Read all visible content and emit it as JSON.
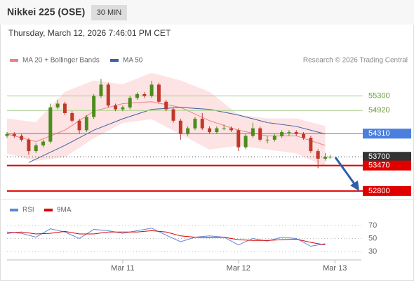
{
  "chart_data": [
    {
      "type": "candlestick",
      "title": "Nikkei 225 (OSE)",
      "timeframe": "30 MIN",
      "subtitle": "Thursday, March 12, 2026 7:46:01 PM CET",
      "source": "Research © 2026 Trading Central",
      "x": [
        0,
        3,
        6,
        9,
        12,
        15,
        18,
        21,
        24,
        27,
        30,
        33,
        36,
        39,
        42,
        45,
        48,
        51,
        54,
        57,
        60,
        63,
        66,
        69,
        72,
        75,
        78,
        81,
        84,
        87,
        90,
        93,
        96,
        99,
        102,
        105,
        108,
        111,
        114,
        117,
        120,
        123,
        126,
        129,
        132,
        134
      ],
      "open": [
        54250,
        54300,
        54250,
        54150,
        53850,
        54000,
        54100,
        55000,
        55100,
        54850,
        54650,
        54400,
        54750,
        55300,
        55600,
        55050,
        54950,
        55000,
        55250,
        55350,
        55300,
        55600,
        55150,
        54950,
        54650,
        54300,
        54450,
        54700,
        54450,
        54350,
        54450,
        54450,
        54400,
        53950,
        54250,
        54450,
        54150,
        54150,
        54250,
        54350,
        54350,
        54300,
        54200,
        53850,
        53650,
        53700
      ],
      "high": [
        54350,
        54350,
        54300,
        54200,
        54050,
        54150,
        55100,
        55200,
        55150,
        54900,
        54700,
        54800,
        55350,
        55750,
        55650,
        55100,
        55050,
        55300,
        55400,
        55400,
        55700,
        55650,
        55200,
        55000,
        54700,
        54500,
        54750,
        54850,
        54500,
        54500,
        54550,
        54500,
        54450,
        54300,
        54600,
        54500,
        54250,
        54300,
        54400,
        54400,
        54400,
        54350,
        54250,
        53900,
        53800,
        53750
      ],
      "low": [
        54200,
        54200,
        54100,
        53750,
        53800,
        53950,
        54050,
        54950,
        54800,
        54600,
        54300,
        54350,
        54700,
        55250,
        55000,
        54900,
        54900,
        54950,
        55200,
        55250,
        55250,
        55100,
        54900,
        54600,
        54150,
        54250,
        54400,
        54400,
        54300,
        54300,
        54400,
        54350,
        53850,
        53900,
        54200,
        54100,
        54050,
        54100,
        54200,
        54250,
        54250,
        54150,
        53800,
        53400,
        53600,
        53650
      ],
      "close": [
        54300,
        54250,
        54150,
        53850,
        54000,
        54100,
        55000,
        55100,
        54850,
        54650,
        54400,
        54750,
        55300,
        55600,
        55050,
        54950,
        55000,
        55250,
        55350,
        55300,
        55600,
        55150,
        54950,
        54650,
        54300,
        54450,
        54700,
        54450,
        54350,
        54450,
        54450,
        54400,
        53950,
        54250,
        54450,
        54150,
        54150,
        54250,
        54350,
        54350,
        54300,
        54200,
        53850,
        53650,
        53700,
        53700
      ],
      "up_color": "#4c8c1c",
      "down_color": "#c0392b",
      "xlim": [
        0,
        147
      ],
      "ylim": [
        52650,
        56440
      ],
      "series": [
        {
          "name": "MA 20 + Bollinger Bands",
          "color": "#f08080",
          "band_color": "#fde3e3",
          "x": [
            0,
            12,
            24,
            36,
            48,
            60,
            72,
            84,
            96,
            108,
            120,
            132
          ],
          "values": [
            54300,
            54100,
            54400,
            54900,
            55100,
            55150,
            55000,
            54650,
            54400,
            54250,
            54250,
            54000
          ],
          "upper": [
            54700,
            54600,
            55400,
            55700,
            55600,
            55900,
            55700,
            55400,
            54800,
            54700,
            54700,
            54500
          ],
          "lower": [
            53800,
            53600,
            53700,
            54200,
            54600,
            54700,
            54300,
            53900,
            54000,
            53900,
            53800,
            53450
          ]
        },
        {
          "name": "MA 50",
          "color": "#3d5fa6",
          "x": [
            9,
            24,
            36,
            48,
            60,
            72,
            84,
            96,
            108,
            120,
            132
          ],
          "values": [
            53550,
            54000,
            54400,
            54700,
            54950,
            55000,
            54950,
            54800,
            54600,
            54500,
            54300
          ]
        }
      ],
      "levels": [
        {
          "value": 55300,
          "color": "#a9d18e",
          "style": "text"
        },
        {
          "value": 54920,
          "color": "#a9d18e",
          "style": "text"
        },
        {
          "value": 54310,
          "color": "#4a7fe0",
          "style": "box"
        },
        {
          "value": 53700,
          "color": "#333333",
          "style": "dotted"
        },
        {
          "value": 53470,
          "color": "#e00000",
          "style": "box"
        },
        {
          "value": 52800,
          "color": "#e00000",
          "style": "box"
        }
      ]
    },
    {
      "type": "line",
      "xlim": [
        0,
        147
      ],
      "ylim": [
        19,
        82
      ],
      "yticks": [
        30,
        50,
        70
      ],
      "xticks": [
        {
          "value": 48,
          "label": "Mar 11"
        },
        {
          "value": 96,
          "label": "Mar 12"
        },
        {
          "value": 136,
          "label": "Mar 13"
        }
      ],
      "series": [
        {
          "name": "RSI",
          "color": "#5b87d6",
          "x": [
            0,
            6,
            12,
            18,
            24,
            30,
            36,
            42,
            48,
            54,
            60,
            66,
            72,
            78,
            84,
            90,
            96,
            102,
            108,
            114,
            120,
            126,
            132
          ],
          "values": [
            60,
            58,
            52,
            65,
            60,
            50,
            64,
            62,
            58,
            62,
            66,
            55,
            45,
            52,
            54,
            52,
            40,
            50,
            46,
            52,
            50,
            38,
            42
          ]
        },
        {
          "name": "9MA",
          "color": "#e00000",
          "x": [
            0,
            6,
            12,
            18,
            24,
            30,
            36,
            42,
            48,
            54,
            60,
            66,
            72,
            78,
            84,
            90,
            96,
            102,
            108,
            114,
            120,
            126,
            132
          ],
          "values": [
            58,
            60,
            57,
            58,
            61,
            57,
            57,
            60,
            60,
            60,
            62,
            60,
            54,
            52,
            51,
            52,
            48,
            47,
            47,
            48,
            49,
            44,
            40
          ]
        }
      ]
    }
  ]
}
